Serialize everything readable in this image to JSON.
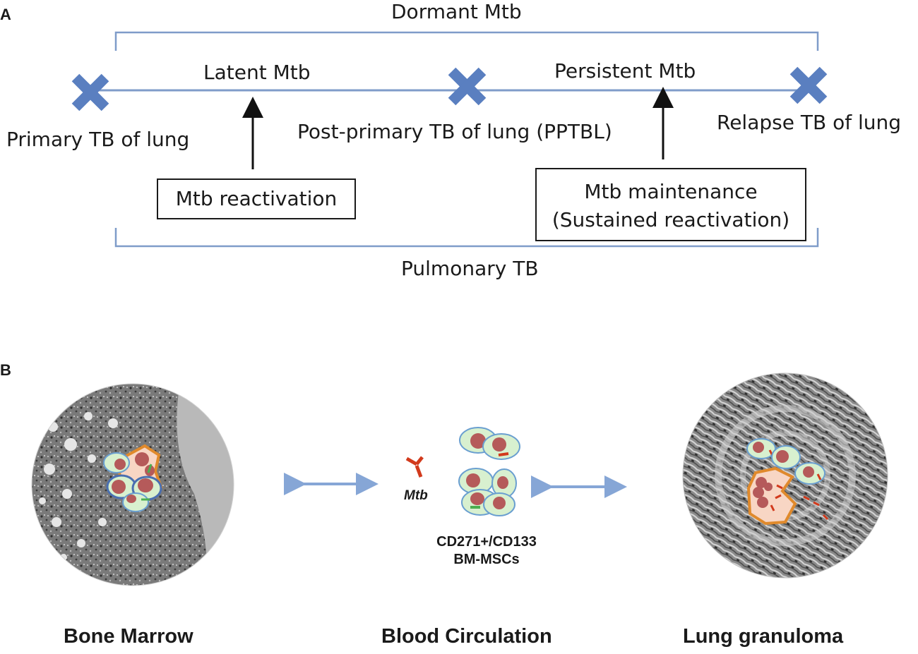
{
  "panel_a": {
    "letter": "A",
    "top_bracket_label": "Dormant Mtb",
    "bottom_bracket_label": "Pulmonary TB",
    "segment_labels": {
      "latent": "Latent Mtb",
      "persistent": "Persistent Mtb"
    },
    "stages": {
      "primary": "Primary TB of lung",
      "post_primary": "Post-primary TB of lung (PPTBL)",
      "relapse": "Relapse TB of lung"
    },
    "boxes": {
      "reactivation": "Mtb reactivation",
      "maintenance_line1": "Mtb maintenance",
      "maintenance_line2": "(Sustained reactivation)"
    }
  },
  "panel_b": {
    "letter": "B",
    "mtb_label": "Mtb",
    "cells_label_line1": "CD271+/CD133",
    "cells_label_line2": "BM-MSCs",
    "locations": {
      "bone_marrow": "Bone Marrow",
      "blood": "Blood Circulation",
      "lung": "Lung granuloma"
    }
  },
  "colors": {
    "timeline": "#7f9cc9",
    "marker": "#5a7fc0",
    "arrow_b": "#86a6d6",
    "cell_fill": "#d8f0cf",
    "cell_stroke": "#6a9fd0",
    "nucleus": "#b55a5a",
    "bacterium": "#d23a1c",
    "macrophage_fill": "#f8d6c4",
    "macrophage_stroke": "#e08a2c"
  }
}
